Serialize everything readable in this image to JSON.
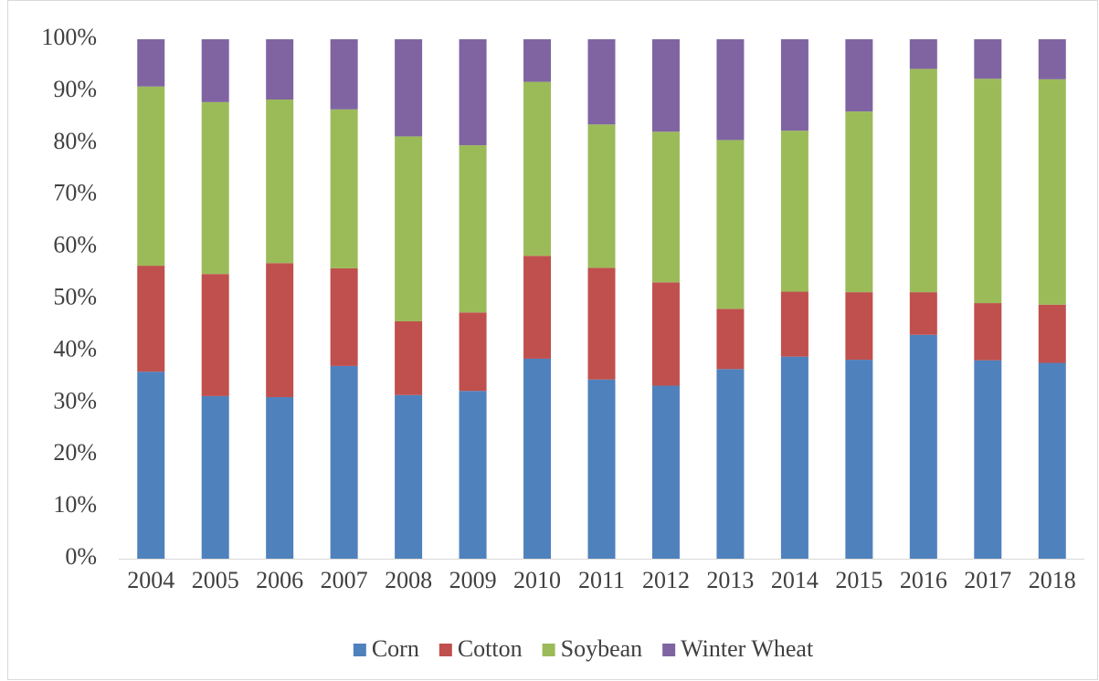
{
  "chart_data": {
    "type": "stacked_bar",
    "categories": [
      "2004",
      "2005",
      "2006",
      "2007",
      "2008",
      "2009",
      "2010",
      "2011",
      "2012",
      "2013",
      "2014",
      "2015",
      "2016",
      "2017",
      "2018"
    ],
    "series": [
      {
        "name": "Corn",
        "color": "#4f81bd",
        "values": [
          36.0,
          31.3,
          31.1,
          37.1,
          31.5,
          32.3,
          38.5,
          34.5,
          33.3,
          36.5,
          38.9,
          38.3,
          43.1,
          38.2,
          37.7
        ]
      },
      {
        "name": "Cotton",
        "color": "#c0504d",
        "values": [
          20.4,
          23.5,
          25.8,
          18.8,
          14.2,
          15.1,
          19.8,
          21.5,
          19.9,
          11.6,
          12.5,
          13.0,
          8.2,
          11.0,
          11.2
        ]
      },
      {
        "name": "Soybean",
        "color": "#9bbb59",
        "values": [
          34.5,
          33.1,
          31.5,
          30.6,
          35.6,
          32.2,
          33.5,
          27.6,
          29.0,
          32.5,
          31.0,
          34.8,
          43.0,
          43.2,
          43.4
        ]
      },
      {
        "name": "Winter Wheat",
        "color": "#8064a2",
        "values": [
          9.1,
          12.1,
          11.6,
          13.5,
          18.7,
          20.4,
          8.2,
          16.4,
          17.8,
          19.4,
          17.6,
          13.9,
          5.7,
          7.6,
          7.7
        ]
      }
    ],
    "ylim": [
      0,
      100
    ],
    "yticks": [
      {
        "value": 0,
        "label": "0%"
      },
      {
        "value": 10,
        "label": "10%"
      },
      {
        "value": 20,
        "label": "20%"
      },
      {
        "value": 30,
        "label": "30%"
      },
      {
        "value": 40,
        "label": "40%"
      },
      {
        "value": 50,
        "label": "50%"
      },
      {
        "value": 60,
        "label": "60%"
      },
      {
        "value": 70,
        "label": "70%"
      },
      {
        "value": 80,
        "label": "80%"
      },
      {
        "value": 90,
        "label": "90%"
      },
      {
        "value": 100,
        "label": "100%"
      }
    ],
    "grid": false,
    "legend": "bottom"
  }
}
